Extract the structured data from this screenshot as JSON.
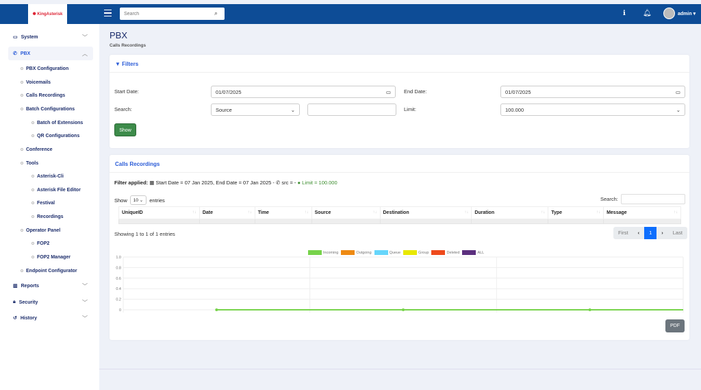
{
  "header": {
    "logo_text": "KingAsterisk Technologies",
    "search_placeholder": "Search",
    "user": "admin",
    "icons": [
      "menu-icon",
      "search-icon",
      "info-icon",
      "bell-icon",
      "avatar"
    ]
  },
  "sidebar": {
    "items": [
      {
        "label": "System",
        "icon": "laptop-icon",
        "level": 0
      },
      {
        "label": "PBX",
        "icon": "phone-icon",
        "level": 0,
        "active": true
      },
      {
        "label": "PBX Configuration",
        "level": 1
      },
      {
        "label": "Voicemails",
        "level": 1
      },
      {
        "label": "Calls Recordings",
        "level": 1
      },
      {
        "label": "Batch Configurations",
        "level": 1
      },
      {
        "label": "Batch of Extensions",
        "level": 2
      },
      {
        "label": "QR Configurations",
        "level": 2
      },
      {
        "label": "Conference",
        "level": 1
      },
      {
        "label": "Tools",
        "level": 1
      },
      {
        "label": "Asterisk-Cli",
        "level": 2
      },
      {
        "label": "Asterisk File Editor",
        "level": 2
      },
      {
        "label": "Festival",
        "level": 2
      },
      {
        "label": "Recordings",
        "level": 2
      },
      {
        "label": "Operator Panel",
        "level": 1
      },
      {
        "label": "FOP2",
        "level": 2
      },
      {
        "label": "FOP2 Manager",
        "level": 2
      },
      {
        "label": "Endpoint Configurator",
        "level": 1
      },
      {
        "label": "Reports",
        "icon": "chart-icon",
        "level": 0
      },
      {
        "label": "Security",
        "icon": "lock-icon",
        "level": 0
      },
      {
        "label": "History",
        "icon": "history-icon",
        "level": 0
      }
    ]
  },
  "page": {
    "title": "PBX",
    "subtitle": "Calls Recordings"
  },
  "filters": {
    "title": "Filters",
    "start_label": "Start Date:",
    "start_value": "01/07/2025",
    "end_label": "End Date:",
    "end_value": "01/07/2025",
    "search_label": "Search:",
    "search_field": "Source",
    "search_value": "",
    "limit_label": "Limit:",
    "limit_value": "100.000",
    "show_button": "Show"
  },
  "recordings": {
    "title": "Calls Recordings",
    "filter_prefix": "Filter applied:",
    "filter_text": "Start Date = 07 Jan 2025, End Date = 07 Jan 2025 - ",
    "filter_src": "src = - ",
    "filter_limit": "Limit = 100.000",
    "limit_color": "#3c8d2f",
    "show_label": "Show",
    "page_size": "10",
    "entries_label": "entries",
    "search_label": "Search:",
    "columns": [
      "UniqueID",
      "Date",
      "Time",
      "Source",
      "Destination",
      "Duration",
      "Type",
      "Message"
    ],
    "info": "Showing 1 to 1 of 1 entries",
    "pagination": {
      "first": "First",
      "current": "1",
      "last": "Last"
    },
    "pdf_button": "PDF"
  },
  "chart_data": {
    "type": "line",
    "ylim": [
      0,
      1
    ],
    "yticks": [
      "1.0",
      "0.8",
      "0.6",
      "0.4",
      "0.2",
      "0"
    ],
    "grid": true,
    "legend_position": "top",
    "series": [
      {
        "name": "Incoming",
        "color": "#77d34b",
        "values": [
          0,
          0,
          0
        ]
      },
      {
        "name": "Outgoing",
        "color": "#ee8a12",
        "values": []
      },
      {
        "name": "Queue",
        "color": "#66d6fb",
        "values": []
      },
      {
        "name": "Group",
        "color": "#e8e800",
        "values": []
      },
      {
        "name": "Deleted",
        "color": "#ee4a1c",
        "values": []
      },
      {
        "name": "ALL",
        "color": "#5b2f7e",
        "values": []
      }
    ]
  }
}
